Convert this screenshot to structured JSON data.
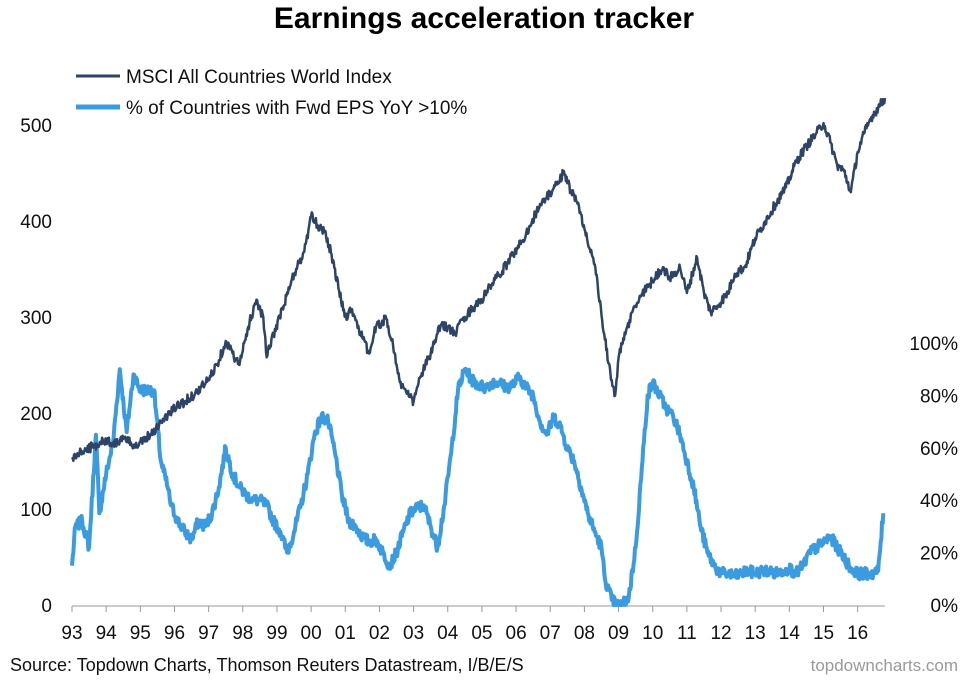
{
  "chart_data": {
    "type": "line",
    "title": "Earnings acceleration tracker",
    "source": "Source: Topdown Charts, Thomson Reuters Datastream, I/B/E/S",
    "watermark": "topdowncharts.com",
    "legend_position": "top-left",
    "x_tick_labels": [
      "93",
      "94",
      "95",
      "96",
      "97",
      "98",
      "99",
      "00",
      "01",
      "02",
      "03",
      "04",
      "05",
      "06",
      "07",
      "08",
      "09",
      "10",
      "11",
      "12",
      "13",
      "14",
      "15",
      "16"
    ],
    "x_range": [
      1993,
      2016.8
    ],
    "y_left": {
      "ticks": [
        "0",
        "100",
        "200",
        "300",
        "400",
        "500"
      ],
      "range": [
        0,
        500
      ]
    },
    "y_right": {
      "ticks": [
        "0%",
        "20%",
        "40%",
        "60%",
        "80%",
        "100%"
      ],
      "range": [
        0,
        100
      ]
    },
    "series": [
      {
        "name": "MSCI All Countries World Index",
        "axis": "left",
        "color": "#2e4466",
        "x": [
          1993.0,
          1993.3,
          1993.6,
          1994.0,
          1994.2,
          1994.5,
          1994.8,
          1995.0,
          1995.3,
          1995.6,
          1996.0,
          1996.3,
          1996.6,
          1997.0,
          1997.3,
          1997.5,
          1997.7,
          1997.9,
          1998.2,
          1998.4,
          1998.6,
          1998.7,
          1998.9,
          1999.2,
          1999.5,
          1999.8,
          2000.0,
          2000.2,
          2000.4,
          2000.6,
          2000.8,
          2001.0,
          2001.2,
          2001.5,
          2001.7,
          2001.9,
          2002.2,
          2002.4,
          2002.6,
          2002.8,
          2003.0,
          2003.2,
          2003.5,
          2003.8,
          2004.0,
          2004.2,
          2004.5,
          2004.8,
          2005.0,
          2005.3,
          2005.6,
          2005.9,
          2006.2,
          2006.4,
          2006.6,
          2006.9,
          2007.2,
          2007.4,
          2007.6,
          2007.8,
          2008.0,
          2008.3,
          2008.5,
          2008.7,
          2008.9,
          2009.0,
          2009.2,
          2009.4,
          2009.7,
          2010.0,
          2010.3,
          2010.5,
          2010.8,
          2011.0,
          2011.3,
          2011.5,
          2011.7,
          2011.9,
          2012.2,
          2012.4,
          2012.7,
          2013.0,
          2013.3,
          2013.6,
          2013.9,
          2014.2,
          2014.5,
          2014.8,
          2015.0,
          2015.2,
          2015.4,
          2015.6,
          2015.8,
          2016.0,
          2016.2,
          2016.4,
          2016.6,
          2016.8
        ],
        "values": [
          152,
          160,
          165,
          172,
          168,
          173,
          167,
          170,
          178,
          190,
          205,
          212,
          220,
          235,
          255,
          275,
          262,
          250,
          295,
          318,
          300,
          258,
          282,
          312,
          345,
          368,
          405,
          395,
          390,
          365,
          330,
          300,
          308,
          278,
          262,
          290,
          298,
          270,
          232,
          220,
          212,
          238,
          262,
          292,
          290,
          282,
          300,
          312,
          318,
          335,
          348,
          365,
          380,
          395,
          410,
          425,
          438,
          452,
          432,
          418,
          392,
          355,
          302,
          252,
          218,
          258,
          282,
          305,
          325,
          338,
          352,
          340,
          352,
          325,
          362,
          325,
          305,
          312,
          325,
          345,
          352,
          382,
          400,
          418,
          435,
          462,
          478,
          492,
          502,
          482,
          458,
          452,
          430,
          472,
          492,
          508,
          518,
          528
        ]
      },
      {
        "name": "% of Countries with Fwd EPS YoY >10%",
        "axis": "right",
        "color": "#3b9be0",
        "x": [
          1993.0,
          1993.1,
          1993.3,
          1993.5,
          1993.7,
          1993.8,
          1994.0,
          1994.2,
          1994.4,
          1994.6,
          1994.8,
          1995.0,
          1995.2,
          1995.4,
          1995.6,
          1995.8,
          1995.9,
          1996.1,
          1996.3,
          1996.5,
          1996.7,
          1996.9,
          1997.1,
          1997.3,
          1997.5,
          1997.7,
          1997.9,
          1998.1,
          1998.3,
          1998.5,
          1998.7,
          1998.9,
          1999.1,
          1999.3,
          1999.5,
          1999.7,
          1999.9,
          2000.1,
          2000.3,
          2000.5,
          2000.7,
          2000.9,
          2001.1,
          2001.3,
          2001.5,
          2001.7,
          2001.9,
          2002.1,
          2002.3,
          2002.5,
          2002.7,
          2002.9,
          2003.1,
          2003.3,
          2003.5,
          2003.7,
          2003.9,
          2004.1,
          2004.3,
          2004.5,
          2004.7,
          2004.9,
          2005.1,
          2005.3,
          2005.5,
          2005.7,
          2005.9,
          2006.1,
          2006.3,
          2006.5,
          2006.7,
          2006.9,
          2007.1,
          2007.3,
          2007.5,
          2007.7,
          2007.9,
          2008.1,
          2008.3,
          2008.5,
          2008.6,
          2008.8,
          2008.95,
          2009.1,
          2009.3,
          2009.5,
          2009.7,
          2009.85,
          2010.0,
          2010.2,
          2010.4,
          2010.6,
          2010.8,
          2011.0,
          2011.2,
          2011.4,
          2011.6,
          2011.8,
          2012.0,
          2012.2,
          2012.4,
          2012.6,
          2012.8,
          2013.0,
          2013.2,
          2013.4,
          2013.6,
          2013.8,
          2014.0,
          2014.2,
          2014.4,
          2014.6,
          2014.8,
          2015.0,
          2015.2,
          2015.4,
          2015.6,
          2015.8,
          2016.0,
          2016.2,
          2016.4,
          2016.6,
          2016.75
        ],
        "values": [
          15,
          30,
          32,
          22,
          65,
          35,
          50,
          62,
          90,
          66,
          88,
          82,
          82,
          82,
          55,
          45,
          38,
          32,
          28,
          25,
          32,
          30,
          35,
          45,
          60,
          50,
          45,
          42,
          40,
          40,
          38,
          32,
          28,
          20,
          28,
          38,
          50,
          65,
          72,
          70,
          58,
          42,
          32,
          30,
          26,
          24,
          25,
          20,
          15,
          20,
          28,
          35,
          37,
          38,
          30,
          22,
          38,
          58,
          82,
          90,
          86,
          84,
          83,
          85,
          85,
          83,
          84,
          87,
          83,
          80,
          70,
          65,
          72,
          68,
          60,
          55,
          45,
          35,
          28,
          22,
          10,
          2,
          0,
          0,
          3,
          22,
          55,
          80,
          85,
          80,
          75,
          72,
          65,
          55,
          45,
          30,
          20,
          15,
          12,
          12,
          11,
          12,
          13,
          12,
          13,
          13,
          12,
          13,
          14,
          12,
          15,
          20,
          22,
          24,
          26,
          22,
          18,
          14,
          12,
          12,
          12,
          13,
          35
        ]
      }
    ]
  }
}
